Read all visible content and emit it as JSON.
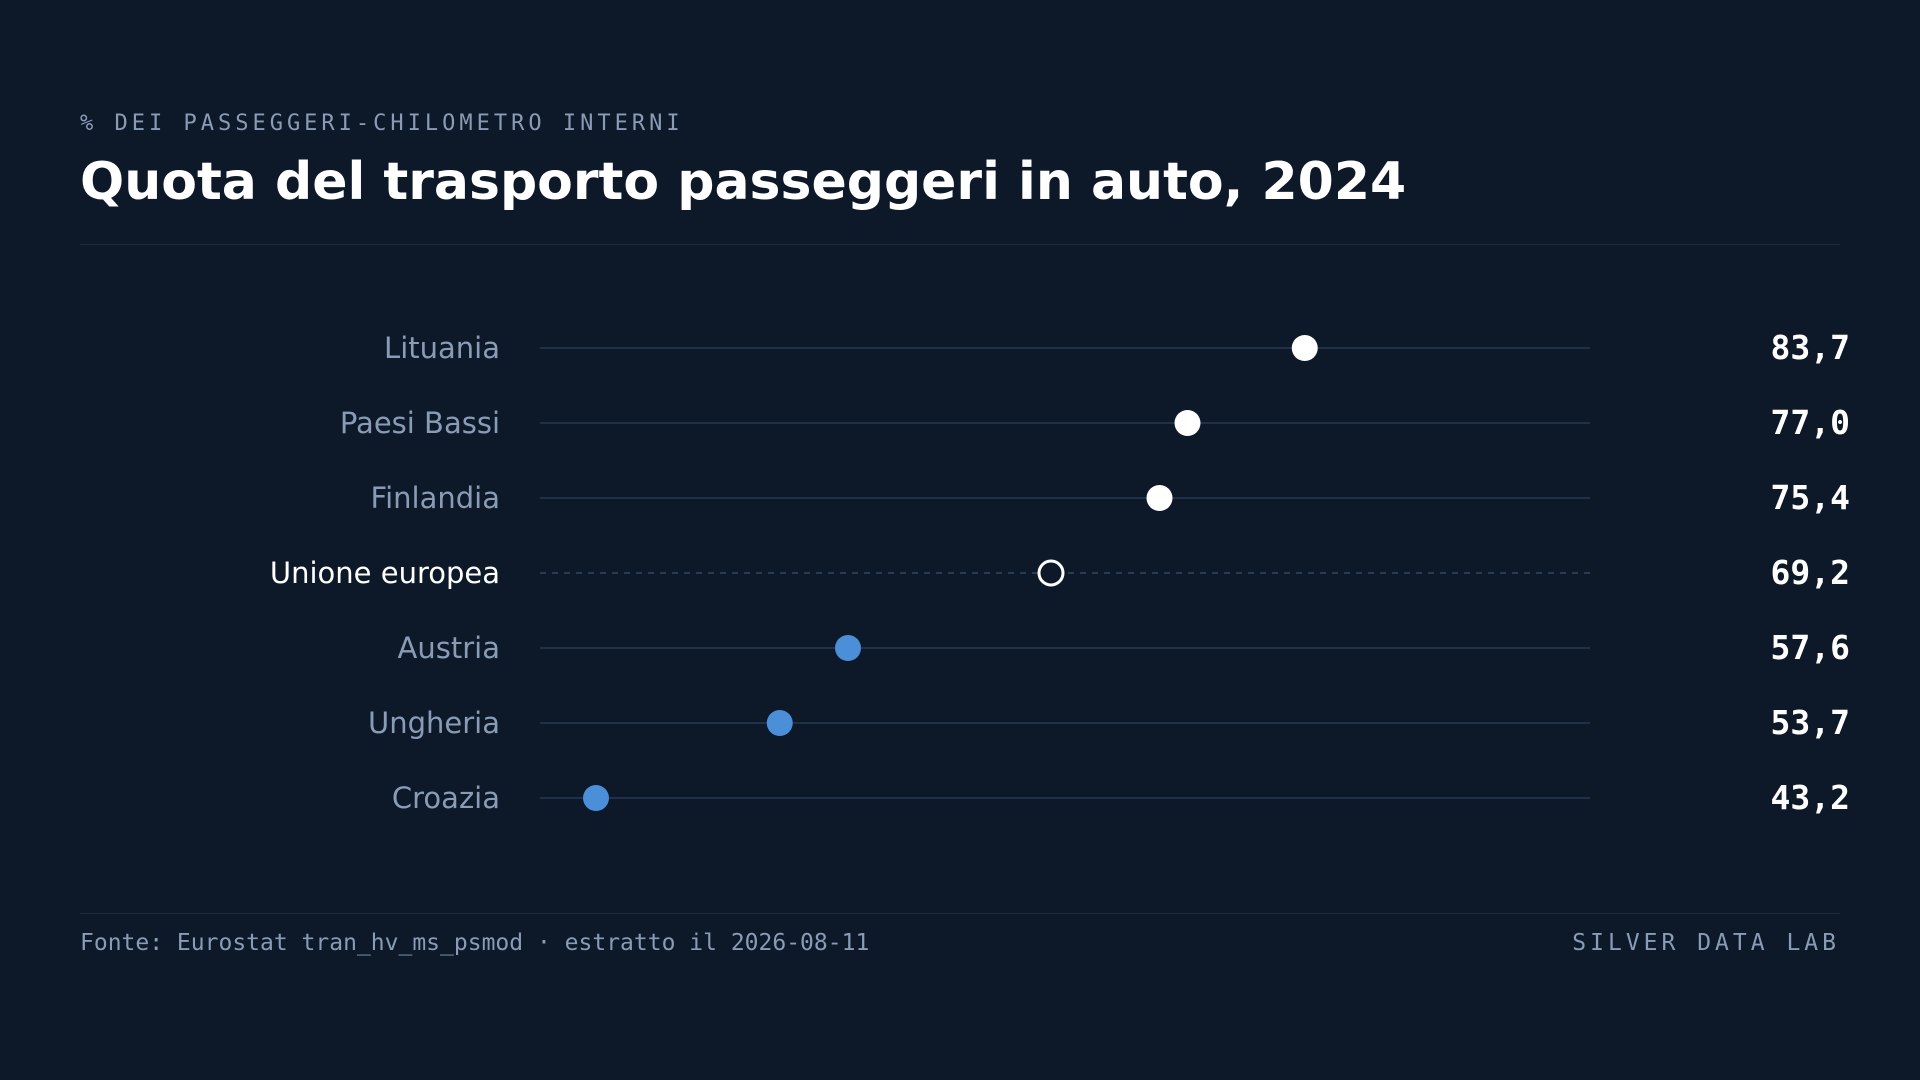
{
  "header": {
    "kicker": "% DEI PASSEGGERI-CHILOMETRO INTERNI",
    "title": "Quota del trasporto passeggeri in auto, 2024"
  },
  "footer": {
    "source": "Fonte: Eurostat tran_hv_ms_psmod · estratto il 2026-08-11",
    "brand": "SILVER DATA LAB"
  },
  "colors": {
    "background": "#0d1929",
    "high": "#ffffff",
    "low": "#4a8fd8",
    "reference_ring": "#ffffff",
    "track": "#1f3048",
    "label": "#8a9bb5",
    "value": "#ffffff"
  },
  "chart_data": {
    "type": "dot",
    "title": "Quota del trasporto passeggeri in auto, 2024",
    "subtitle": "% DEI PASSEGGERI-CHILOMETRO INTERNI",
    "xlim": [
      40,
      100
    ],
    "grid": false,
    "categories": [
      "Lituania",
      "Paesi Bassi",
      "Finlandia",
      "Unione europea",
      "Austria",
      "Ungheria",
      "Croazia"
    ],
    "values": [
      83.7,
      77.0,
      75.4,
      69.2,
      57.6,
      53.7,
      43.2
    ],
    "value_labels": [
      "83,7",
      "77,0",
      "75,4",
      "69,2",
      "57,6",
      "53,7",
      "43,2"
    ],
    "reference_category": "Unione europea"
  }
}
